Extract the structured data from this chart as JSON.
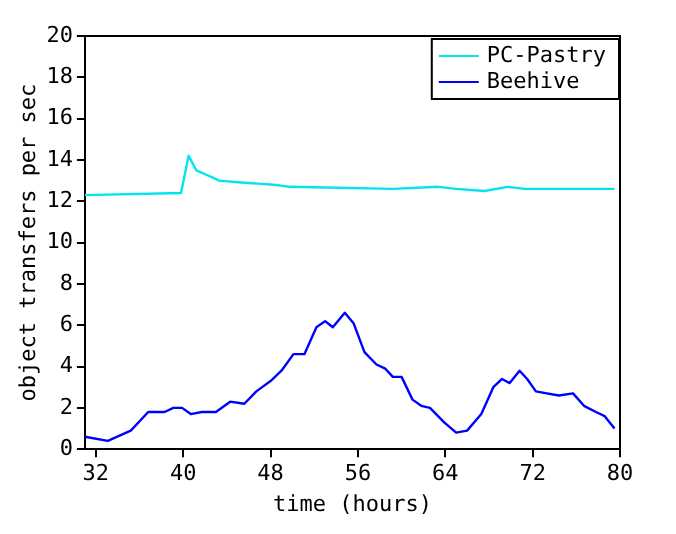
{
  "chart_data": {
    "type": "line",
    "xlabel": "time (hours)",
    "ylabel": "object transfers per sec",
    "xlim": [
      31,
      80
    ],
    "xticks": [
      32,
      40,
      48,
      56,
      64,
      72,
      80
    ],
    "ylim": [
      0,
      20
    ],
    "yticks": [
      0,
      2,
      4,
      6,
      8,
      10,
      12,
      14,
      16,
      18,
      20
    ],
    "grid": false,
    "legend": "top right",
    "marker": "none",
    "line_style": "solid",
    "series": [
      {
        "name": "PC-Pastry",
        "color": "#00e5ee",
        "x": [
          31,
          39.8,
          40.5,
          41.2,
          42.5,
          43.3,
          45.6,
          48.3,
          49.8,
          59.2,
          63.4,
          65,
          67.6,
          69.7,
          71.3,
          79.5
        ],
        "values": [
          12.3,
          12.4,
          14.2,
          13.5,
          13.2,
          13.0,
          12.9,
          12.8,
          12.7,
          12.6,
          12.7,
          12.6,
          12.5,
          12.7,
          12.6,
          12.6
        ]
      },
      {
        "name": "Beehive",
        "color": "#0000ff",
        "x": [
          31,
          33.1,
          35.2,
          36.8,
          38.3,
          39.1,
          39.9,
          40.7,
          41.7,
          43.0,
          44.3,
          45.6,
          46.7,
          48.0,
          49.0,
          50.1,
          51.1,
          52.2,
          53.0,
          53.7,
          54.8,
          55.6,
          56.6,
          57.7,
          58.5,
          59.2,
          60.0,
          61.0,
          61.8,
          62.6,
          63.9,
          65.0,
          66.0,
          67.3,
          68.4,
          69.2,
          69.9,
          70.8,
          71.5,
          72.3,
          73.3,
          74.4,
          75.7,
          76.7,
          77.8,
          78.6,
          79.5
        ],
        "values": [
          0.6,
          0.4,
          0.9,
          1.8,
          1.8,
          2.0,
          2.0,
          1.7,
          1.8,
          1.8,
          2.3,
          2.2,
          2.8,
          3.3,
          3.8,
          4.6,
          4.6,
          5.9,
          6.2,
          5.9,
          6.6,
          6.1,
          4.7,
          4.1,
          3.9,
          3.5,
          3.5,
          2.4,
          2.1,
          2.0,
          1.3,
          0.8,
          0.9,
          1.7,
          3.0,
          3.4,
          3.2,
          3.8,
          3.4,
          2.8,
          2.7,
          2.6,
          2.7,
          2.1,
          1.8,
          1.6,
          1.0
        ]
      }
    ]
  }
}
